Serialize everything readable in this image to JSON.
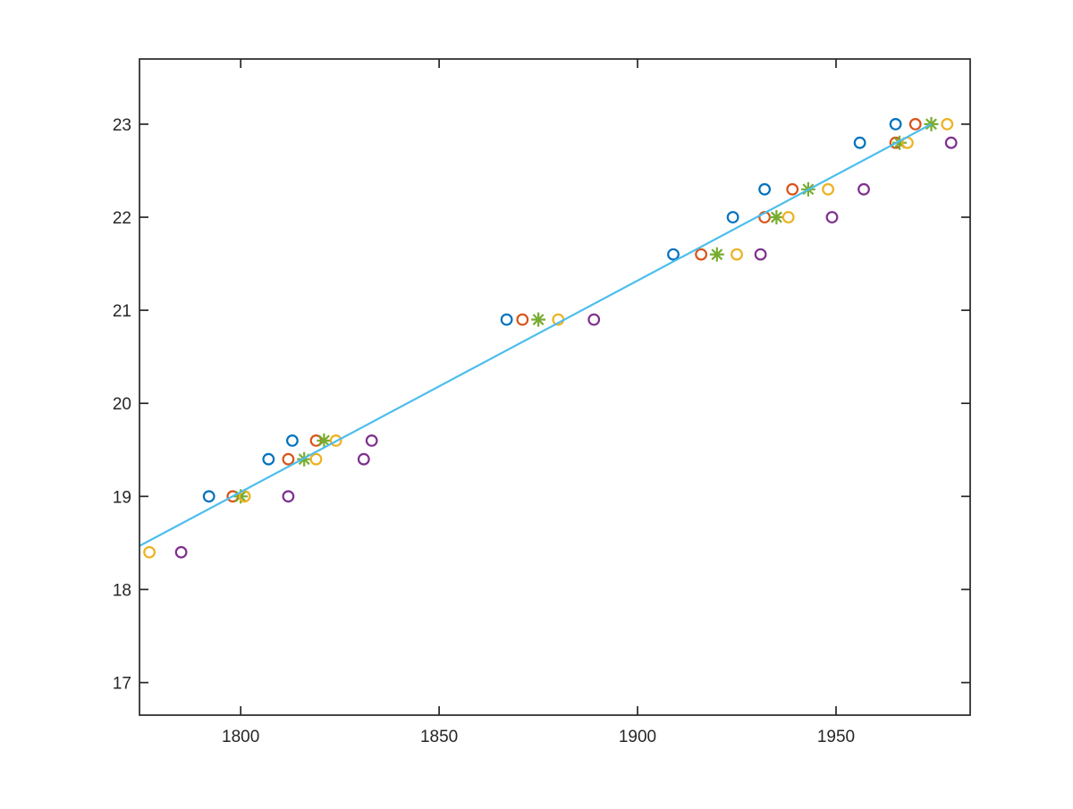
{
  "chart_data": {
    "type": "scatter",
    "title": "",
    "xlabel": "",
    "ylabel": "",
    "xlim": [
      1774.5,
      1983.8
    ],
    "ylim": [
      16.65,
      23.7
    ],
    "x_ticks": [
      1800,
      1850,
      1900,
      1950
    ],
    "y_ticks": [
      17,
      18,
      19,
      20,
      21,
      22,
      23
    ],
    "grid": false,
    "box": true,
    "legend": "none",
    "background": "#ffffff",
    "axis_color": "#262626",
    "series": [
      {
        "name": "series-blue-circles",
        "marker": "circle",
        "color": "#0072BD",
        "points": [
          [
            1792,
            19
          ],
          [
            1807,
            19.4
          ],
          [
            1813,
            19.6
          ],
          [
            1867,
            20.9
          ],
          [
            1909,
            21.6
          ],
          [
            1924,
            22
          ],
          [
            1932,
            22.3
          ],
          [
            1956,
            22.8
          ],
          [
            1965,
            23
          ]
        ]
      },
      {
        "name": "series-orange-circles",
        "marker": "circle",
        "color": "#D95319",
        "points": [
          [
            1798,
            19
          ],
          [
            1812,
            19.4
          ],
          [
            1819,
            19.6
          ],
          [
            1871,
            20.9
          ],
          [
            1916,
            21.6
          ],
          [
            1932,
            22
          ],
          [
            1939,
            22.3
          ],
          [
            1965,
            22.8
          ],
          [
            1970,
            23
          ]
        ]
      },
      {
        "name": "series-green-asterisks",
        "marker": "asterisk",
        "color": "#77AC30",
        "points": [
          [
            1800,
            19
          ],
          [
            1816,
            19.4
          ],
          [
            1821,
            19.6
          ],
          [
            1875,
            20.9
          ],
          [
            1920,
            21.6
          ],
          [
            1935,
            22
          ],
          [
            1943,
            22.3
          ],
          [
            1966,
            22.8
          ],
          [
            1974,
            23
          ]
        ]
      },
      {
        "name": "series-yellow-circles",
        "marker": "circle",
        "color": "#EDB120",
        "points": [
          [
            1777,
            18.4
          ],
          [
            1801,
            19
          ],
          [
            1819,
            19.4
          ],
          [
            1824,
            19.6
          ],
          [
            1880,
            20.9
          ],
          [
            1925,
            21.6
          ],
          [
            1938,
            22
          ],
          [
            1948,
            22.3
          ],
          [
            1968,
            22.8
          ],
          [
            1978,
            23
          ]
        ]
      },
      {
        "name": "series-purple-circles",
        "marker": "circle",
        "color": "#7E2F8E",
        "points": [
          [
            1785,
            18.4
          ],
          [
            1812,
            19
          ],
          [
            1831,
            19.4
          ],
          [
            1833,
            19.6
          ],
          [
            1889,
            20.9
          ],
          [
            1931,
            21.6
          ],
          [
            1949,
            22
          ],
          [
            1957,
            22.3
          ],
          [
            1979,
            22.8
          ]
        ]
      }
    ],
    "fit_line": {
      "color": "#4DBEEE",
      "points": [
        [
          1774.6,
          18.47
        ],
        [
          1974,
          23
        ]
      ]
    }
  }
}
